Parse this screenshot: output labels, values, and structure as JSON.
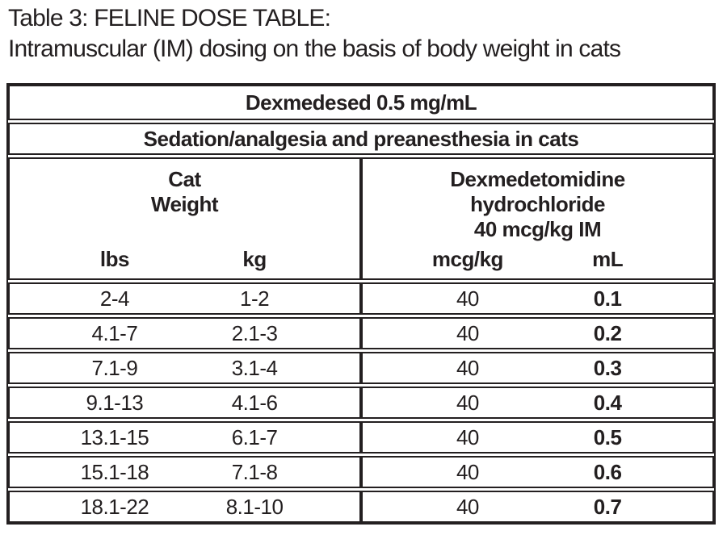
{
  "title": {
    "line1": "Table 3: FELINE DOSE TABLE:",
    "line2": "Intramuscular (IM) dosing on the basis of body weight in cats"
  },
  "table": {
    "product_header": "Dexmedesed 0.5 mg/mL",
    "indication_header": "Sedation/analgesia and preanesthesia in cats",
    "weight_group": {
      "title_lines": [
        "Cat",
        "Weight"
      ],
      "columns": [
        "lbs",
        "kg"
      ]
    },
    "dose_group": {
      "title_lines": [
        "Dexmedetomidine",
        "hydrochloride",
        "40 mcg/kg IM"
      ],
      "columns": [
        "mcg/kg",
        "mL"
      ]
    },
    "rows": [
      {
        "lbs": "2-4",
        "kg": "1-2",
        "mcg_per_kg": "40",
        "ml": "0.1"
      },
      {
        "lbs": "4.1-7",
        "kg": "2.1-3",
        "mcg_per_kg": "40",
        "ml": "0.2"
      },
      {
        "lbs": "7.1-9",
        "kg": "3.1-4",
        "mcg_per_kg": "40",
        "ml": "0.3"
      },
      {
        "lbs": "9.1-13",
        "kg": "4.1-6",
        "mcg_per_kg": "40",
        "ml": "0.4"
      },
      {
        "lbs": "13.1-15",
        "kg": "6.1-7",
        "mcg_per_kg": "40",
        "ml": "0.5"
      },
      {
        "lbs": "15.1-18",
        "kg": "7.1-8",
        "mcg_per_kg": "40",
        "ml": "0.6"
      },
      {
        "lbs": "18.1-22",
        "kg": "8.1-10",
        "mcg_per_kg": "40",
        "ml": "0.7"
      }
    ],
    "colors": {
      "ink": "#231f20",
      "background": "#ffffff"
    }
  }
}
